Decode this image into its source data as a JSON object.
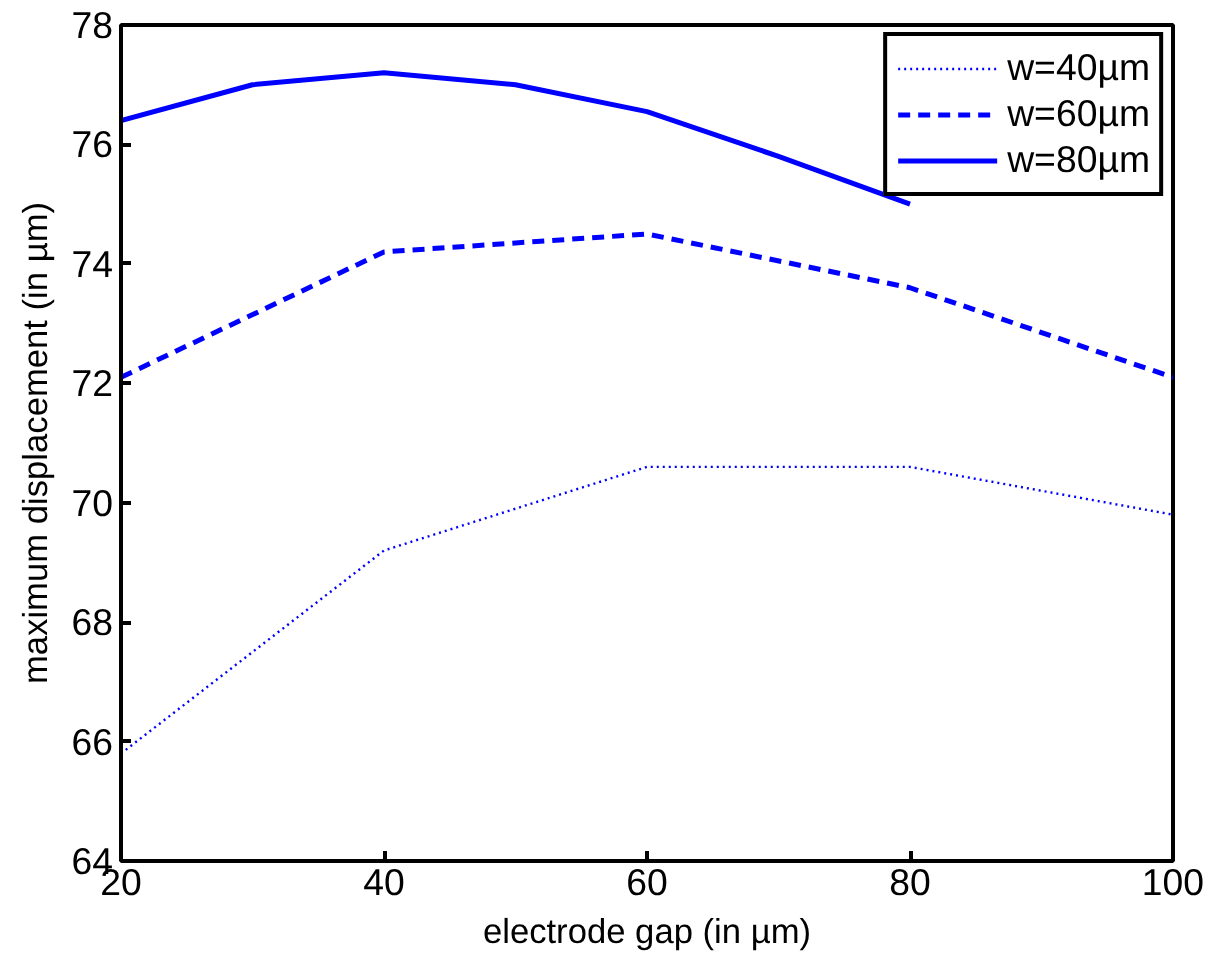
{
  "chart_data": {
    "type": "line",
    "xlabel": "electrode gap (in µm)",
    "ylabel": "maximum displacement (in µm)",
    "xlim": [
      20,
      100
    ],
    "ylim": [
      64,
      78
    ],
    "xticks": [
      20,
      40,
      60,
      80,
      100
    ],
    "yticks": [
      64,
      66,
      68,
      70,
      72,
      74,
      76,
      78
    ],
    "grid": false,
    "legend": "top right",
    "series": [
      {
        "name": "w=40µm",
        "color": "#0000ff",
        "line_style": "dotted",
        "x": [
          20,
          40,
          60,
          80,
          100
        ],
        "values": [
          65.8,
          69.2,
          70.6,
          70.6,
          69.8
        ]
      },
      {
        "name": "w=60µm",
        "color": "#0000ff",
        "line_style": "dashed",
        "x": [
          20,
          40,
          60,
          80,
          100
        ],
        "values": [
          72.1,
          74.2,
          74.5,
          73.6,
          72.1
        ]
      },
      {
        "name": "w=80µm",
        "color": "#0000ff",
        "line_style": "solid",
        "x": [
          20,
          30,
          40,
          50,
          60,
          70,
          80
        ],
        "values": [
          76.4,
          77.0,
          77.2,
          77.0,
          76.55,
          75.8,
          75.0
        ]
      }
    ]
  }
}
